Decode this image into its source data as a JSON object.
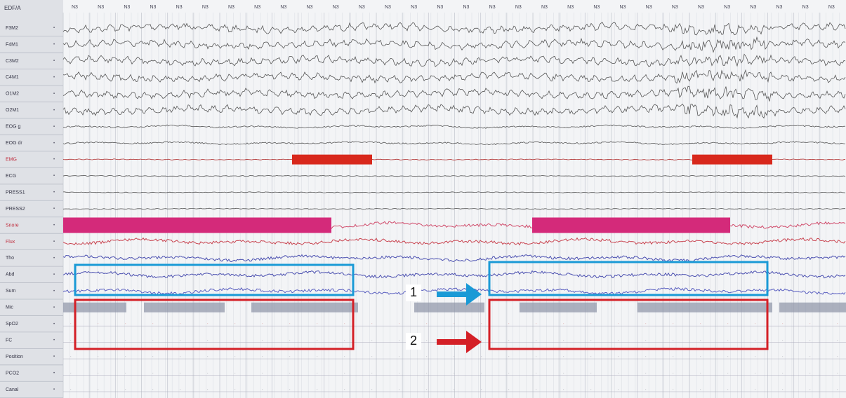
{
  "header": {
    "label": "EDF/A"
  },
  "stages": [
    "N3",
    "N3",
    "N3",
    "N3",
    "N3",
    "N3",
    "N3",
    "N3",
    "N3",
    "N3",
    "N3",
    "N3",
    "N3",
    "N3",
    "N3",
    "N3",
    "N3",
    "N3",
    "N3",
    "N3",
    "N3",
    "N3",
    "N3",
    "N3",
    "N3",
    "N3",
    "N3",
    "N3",
    "N3",
    "N3"
  ],
  "channels": [
    "F3M2",
    "F4M1",
    "C3M2",
    "C4M1",
    "O1M2",
    "O2M1",
    "EOG g",
    "EOG dr",
    "EMG",
    "ECG",
    "PRESS1",
    "PRESS2",
    "Snore",
    "Flux",
    "Tho",
    "Abd",
    "Sum",
    "Mic",
    "SpO2",
    "FC",
    "Position",
    "PCO2",
    "Canal"
  ],
  "annotations": [
    "1",
    "2"
  ]
}
